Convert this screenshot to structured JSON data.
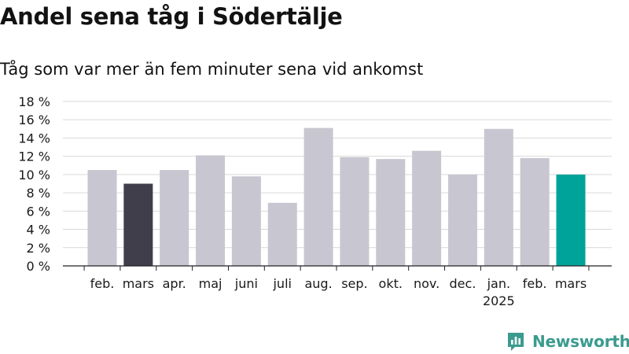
{
  "title": "Andel sena tåg i Södertälje",
  "subtitle": "Tåg som var mer än fem minuter sena vid ankomst",
  "brand": {
    "label": "Newsworthy",
    "icon": "newsworthy-logo-icon",
    "color": "#3a9b8e"
  },
  "colors": {
    "bar": "#c8c6d0",
    "previous_year_bar": "#3f3e4a",
    "current_bar": "#00a39a",
    "grid": "#d9d9d9",
    "axis": "#222222"
  },
  "chart_data": {
    "type": "bar",
    "title": "",
    "xlabel": "",
    "ylabel": "",
    "ylim": [
      0,
      18
    ],
    "y_ticks": [
      "0 %",
      "2 %",
      "4 %",
      "6 %",
      "8 %",
      "10 %",
      "12 %",
      "14 %",
      "16 %",
      "18 %"
    ],
    "grid": true,
    "categories": [
      "feb.",
      "mars",
      "apr.",
      "maj",
      "juni",
      "juli",
      "aug.",
      "sep.",
      "okt.",
      "nov.",
      "dec.",
      "jan.",
      "feb.",
      "mars"
    ],
    "year_label": {
      "index": 11,
      "text": "2025"
    },
    "values": [
      10.5,
      9.0,
      10.5,
      12.1,
      9.8,
      6.9,
      15.1,
      11.9,
      11.7,
      12.6,
      10.0,
      15.0,
      11.8,
      10.0
    ],
    "highlight": {
      "previous_year_index": 1,
      "current_index": 13
    }
  }
}
